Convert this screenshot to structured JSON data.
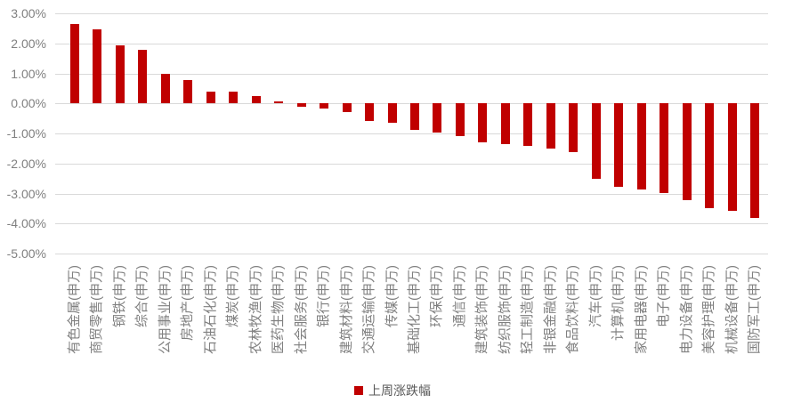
{
  "chart_data": {
    "type": "bar",
    "title": "",
    "legend": "上周涨跌幅",
    "legend_position": "bottom",
    "bar_color": "#c00000",
    "gridline_color": "#d9d9d9",
    "axis_text_color": "#808080",
    "legend_text_color": "#595959",
    "grid": true,
    "ylim": [
      -5,
      3
    ],
    "ytick_step": 1,
    "ytick_labels": [
      "3.00%",
      "2.00%",
      "1.00%",
      "0.00%",
      "-1.00%",
      "-2.00%",
      "-3.00%",
      "-4.00%",
      "-5.00%"
    ],
    "categories": [
      "有色金属(申万)",
      "商贸零售(申万)",
      "钢铁(申万)",
      "综合(申万)",
      "公用事业(申万)",
      "房地产(申万)",
      "石油石化(申万)",
      "煤炭(申万)",
      "农林牧渔(申万)",
      "医药生物(申万)",
      "社会服务(申万)",
      "银行(申万)",
      "建筑材料(申万)",
      "交通运输(申万)",
      "传媒(申万)",
      "基础化工(申万)",
      "环保(申万)",
      "通信(申万)",
      "建筑装饰(申万)",
      "纺织服饰(申万)",
      "轻工制造(申万)",
      "非银金融(申万)",
      "食品饮料(申万)",
      "汽车(申万)",
      "计算机(申万)",
      "家用电器(申万)",
      "电子(申万)",
      "电力设备(申万)",
      "美容护理(申万)",
      "机械设备(申万)",
      "国防军工(申万)"
    ],
    "values": [
      2.63,
      2.46,
      1.93,
      1.8,
      0.98,
      0.79,
      0.4,
      0.39,
      0.23,
      0.08,
      -0.11,
      -0.16,
      -0.3,
      -0.59,
      -0.65,
      -0.87,
      -0.97,
      -1.08,
      -1.3,
      -1.37,
      -1.41,
      -1.51,
      -1.63,
      -2.5,
      -2.77,
      -2.86,
      -2.99,
      -3.21,
      -3.48,
      -3.57,
      -3.82
    ],
    "series_name": "上周涨跌幅",
    "value_unit": "%"
  }
}
